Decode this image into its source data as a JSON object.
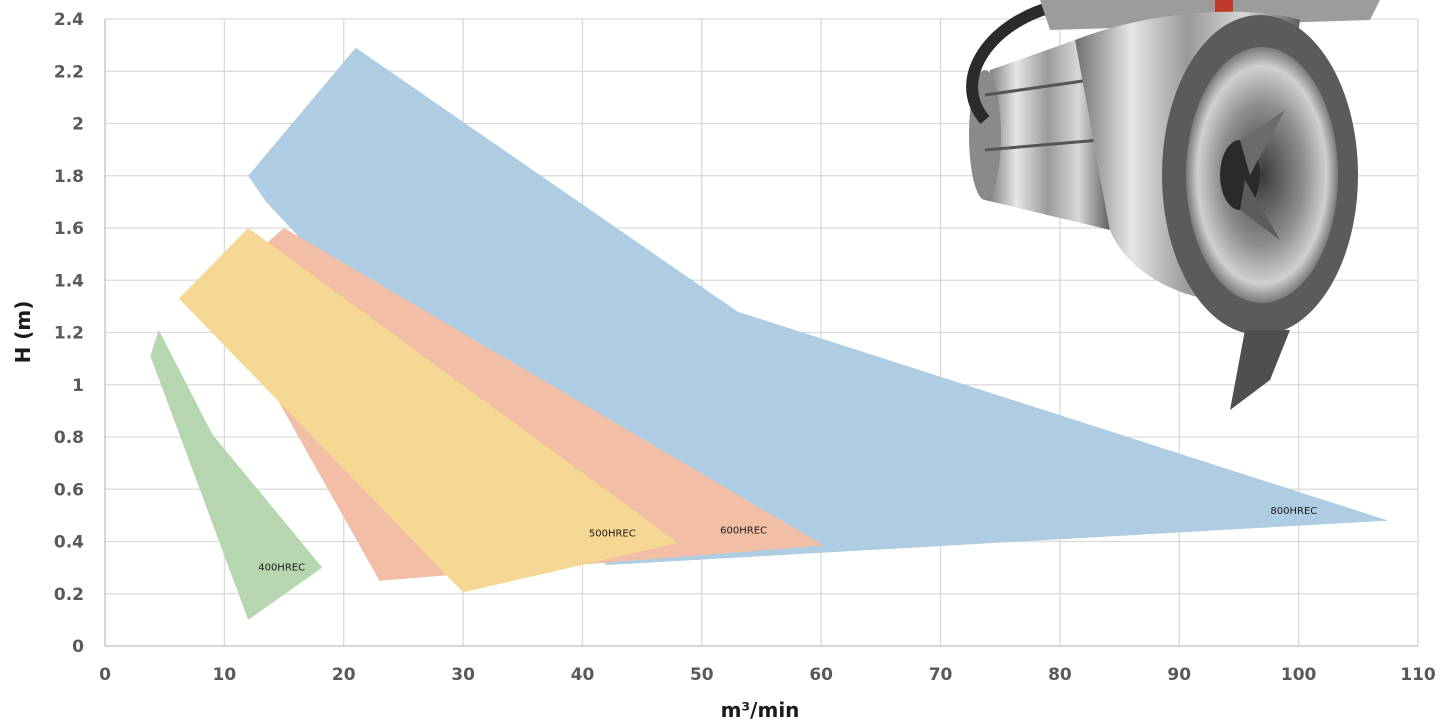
{
  "chart_data": {
    "type": "area",
    "xlabel": "m³/min",
    "ylabel": "H (m)",
    "xlim": [
      0,
      110
    ],
    "ylim": [
      0,
      2.4
    ],
    "x_ticks": [
      0,
      10,
      20,
      30,
      40,
      50,
      60,
      70,
      80,
      90,
      100,
      110
    ],
    "y_ticks": [
      0,
      0.2,
      0.4,
      0.6,
      0.8,
      1,
      1.2,
      1.4,
      1.6,
      1.8,
      2,
      2.2,
      2.4
    ],
    "y_tick_labels": [
      "0",
      "0.2",
      "0.4",
      "0.6",
      "0.8",
      "1",
      "1.2",
      "1.4",
      "1.6",
      "1.8",
      "2",
      "2.2",
      "2.4"
    ],
    "grid": true,
    "series": [
      {
        "name": "800HREC",
        "color": "#aecde3",
        "label_at": [
          99.6,
          0.52
        ],
        "points": [
          [
            12,
            1.8
          ],
          [
            21,
            2.29
          ],
          [
            53,
            1.28
          ],
          [
            107.5,
            0.48
          ],
          [
            42,
            0.31
          ],
          [
            13.5,
            1.7
          ]
        ]
      },
      {
        "name": "600HREC",
        "color": "#f2bfa6",
        "label_at": [
          53.5,
          0.445
        ],
        "points": [
          [
            15,
            1.6
          ],
          [
            60.2,
            0.385
          ],
          [
            23,
            0.25
          ],
          [
            14,
            0.98
          ],
          [
            13.5,
            1.54
          ]
        ]
      },
      {
        "name": "500HREC",
        "color": "#f5d893",
        "label_at": [
          42.5,
          0.435
        ],
        "points": [
          [
            12,
            1.6
          ],
          [
            48,
            0.395
          ],
          [
            30,
            0.205
          ],
          [
            6.2,
            1.33
          ]
        ]
      },
      {
        "name": "400HREC",
        "color": "#b6d6b0",
        "label_at": [
          14.8,
          0.305
        ],
        "points": [
          [
            4.5,
            1.21
          ],
          [
            9,
            0.81
          ],
          [
            18.2,
            0.3
          ],
          [
            12,
            0.1
          ],
          [
            3.8,
            1.11
          ]
        ]
      }
    ]
  },
  "image": {
    "subject": "mixer-photo-icon"
  }
}
